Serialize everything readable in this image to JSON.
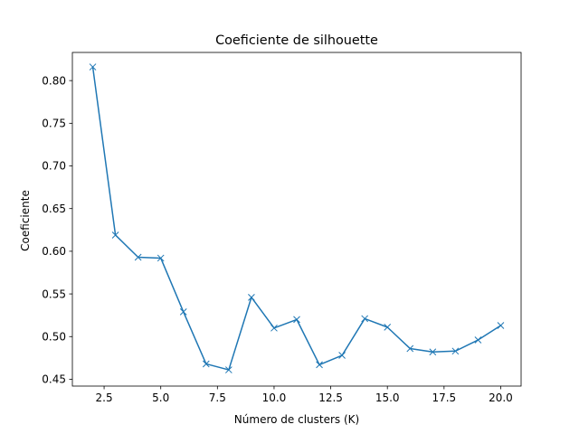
{
  "chart_data": {
    "type": "line",
    "title": "Coeficiente de silhouette",
    "xlabel": "Número de clusters (K)",
    "ylabel": "Coeficiente",
    "xlim": [
      1.1,
      20.9
    ],
    "ylim": [
      0.442,
      0.833
    ],
    "x_ticks": [
      2.5,
      5.0,
      7.5,
      10.0,
      12.5,
      15.0,
      17.5,
      20.0
    ],
    "x_tick_labels": [
      "2.5",
      "5.0",
      "7.5",
      "10.0",
      "12.5",
      "15.0",
      "17.5",
      "20.0"
    ],
    "y_ticks": [
      0.45,
      0.5,
      0.55,
      0.6,
      0.65,
      0.7,
      0.75,
      0.8
    ],
    "y_tick_labels": [
      "0.45",
      "0.50",
      "0.55",
      "0.60",
      "0.65",
      "0.70",
      "0.75",
      "0.80"
    ],
    "grid": false,
    "marker": "x",
    "color": "#1f77b4",
    "series": [
      {
        "x": [
          2,
          3,
          4,
          5,
          6,
          7,
          8,
          9,
          10,
          11,
          12,
          13,
          14,
          15,
          16,
          17,
          18,
          19,
          20
        ],
        "values": [
          0.816,
          0.619,
          0.593,
          0.592,
          0.529,
          0.468,
          0.461,
          0.546,
          0.51,
          0.52,
          0.467,
          0.478,
          0.521,
          0.511,
          0.486,
          0.482,
          0.483,
          0.496,
          0.513
        ]
      }
    ]
  }
}
